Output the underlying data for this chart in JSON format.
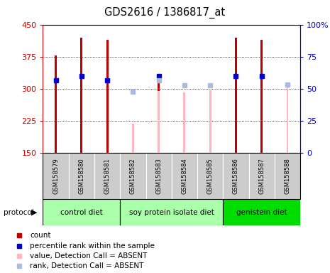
{
  "title": "GDS2616 / 1386817_at",
  "samples": [
    "GSM158579",
    "GSM158580",
    "GSM158581",
    "GSM158582",
    "GSM158583",
    "GSM158584",
    "GSM158585",
    "GSM158586",
    "GSM158587",
    "GSM158588"
  ],
  "count_values": [
    378,
    420,
    415,
    null,
    330,
    null,
    null,
    420,
    415,
    null
  ],
  "count_color": "#BB0000",
  "percentile_rank_values": [
    320,
    330,
    320,
    null,
    330,
    null,
    null,
    330,
    330,
    null
  ],
  "percentile_rank_color": "#0000CC",
  "absent_value_values": [
    null,
    null,
    null,
    218,
    295,
    292,
    296,
    null,
    null,
    305
  ],
  "absent_value_color": "#FFB6C1",
  "absent_rank_values": [
    null,
    null,
    null,
    293,
    320,
    308,
    308,
    null,
    null,
    310
  ],
  "absent_rank_color": "#AABBDD",
  "ylim": [
    150,
    450
  ],
  "yticks": [
    150,
    225,
    300,
    375,
    450
  ],
  "y2lim": [
    0,
    100
  ],
  "y2ticks": [
    0,
    25,
    50,
    75,
    100
  ],
  "y2labels": [
    "0",
    "25",
    "50",
    "75",
    "100%"
  ],
  "left_color": "#CC0000",
  "right_color": "#0000BB",
  "bg_color": "#CCCCCC",
  "plot_bg": "#FFFFFF",
  "group_colors": [
    "#AAFFAA",
    "#AAFFAA",
    "#00DD00"
  ],
  "group_labels": [
    "control diet",
    "soy protein isolate diet",
    "genistein diet"
  ],
  "group_ranges": [
    [
      0,
      3
    ],
    [
      3,
      7
    ],
    [
      7,
      10
    ]
  ],
  "bar_width": 0.08
}
